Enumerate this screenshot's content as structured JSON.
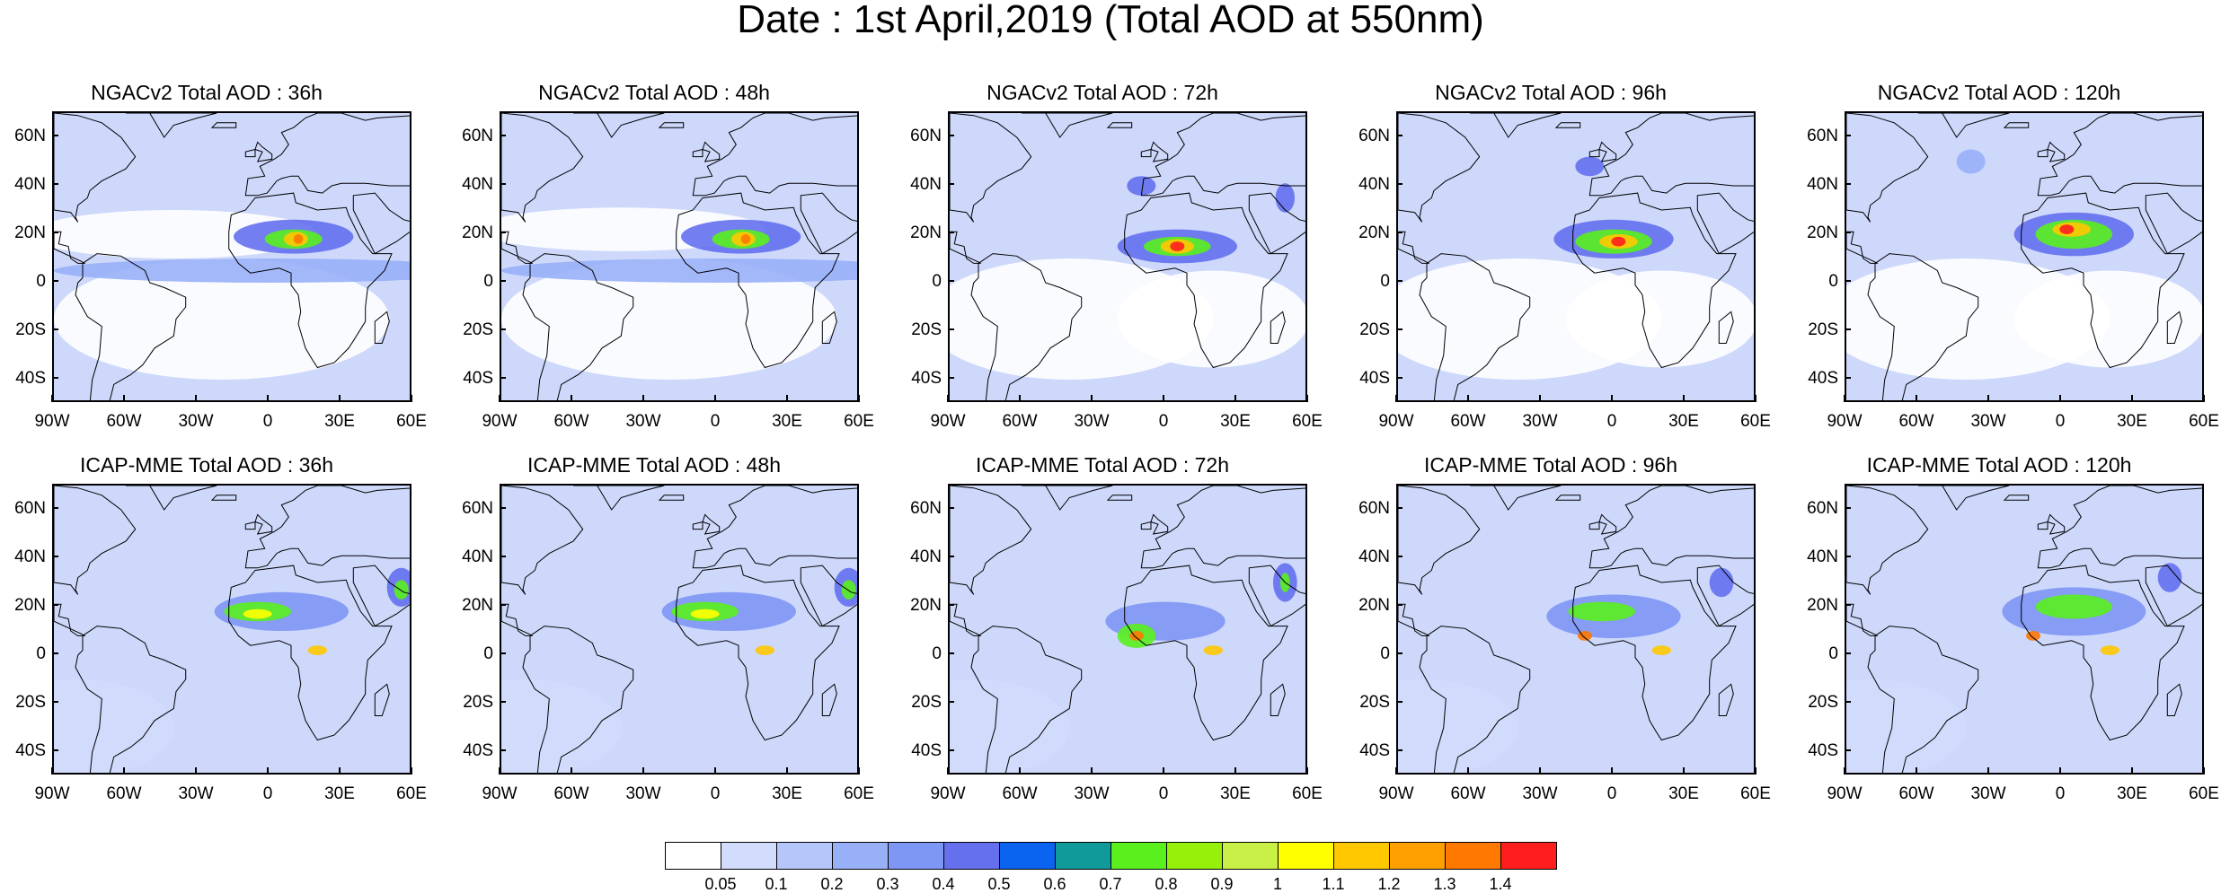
{
  "title": "Date : 1st April,2019 (Total AOD at 550nm)",
  "panels": [
    {
      "title": "NGACv2 Total AOD : 36h",
      "model": "NGACv2",
      "lead": "36h"
    },
    {
      "title": "NGACv2 Total AOD : 48h",
      "model": "NGACv2",
      "lead": "48h"
    },
    {
      "title": "NGACv2 Total AOD : 72h",
      "model": "NGACv2",
      "lead": "72h"
    },
    {
      "title": "NGACv2 Total AOD : 96h",
      "model": "NGACv2",
      "lead": "96h"
    },
    {
      "title": "NGACv2 Total AOD : 120h",
      "model": "NGACv2",
      "lead": "120h"
    },
    {
      "title": "ICAP-MME Total AOD : 36h",
      "model": "ICAP-MME",
      "lead": "36h"
    },
    {
      "title": "ICAP-MME Total AOD : 48h",
      "model": "ICAP-MME",
      "lead": "48h"
    },
    {
      "title": "ICAP-MME Total AOD : 72h",
      "model": "ICAP-MME",
      "lead": "72h"
    },
    {
      "title": "ICAP-MME Total AOD : 96h",
      "model": "ICAP-MME",
      "lead": "96h"
    },
    {
      "title": "ICAP-MME Total AOD : 120h",
      "model": "ICAP-MME",
      "lead": "120h"
    }
  ],
  "lat_labels": [
    "60N",
    "40N",
    "20N",
    "0",
    "20S",
    "40S"
  ],
  "lon_labels": [
    "90W",
    "60W",
    "30W",
    "0",
    "30E",
    "60E"
  ],
  "colorbar": {
    "labels": [
      "0.05",
      "0.1",
      "0.2",
      "0.3",
      "0.4",
      "0.5",
      "0.6",
      "0.7",
      "0.8",
      "0.9",
      "1",
      "1.1",
      "1.2",
      "1.3",
      "1.4"
    ],
    "colors": [
      "#ffffff",
      "#d2dcfc",
      "#b4c6fa",
      "#98b0f8",
      "#7e96f4",
      "#6470ee",
      "#0a64f0",
      "#109a9a",
      "#5af01e",
      "#96f00a",
      "#c8f046",
      "#ffff00",
      "#ffc800",
      "#ffa000",
      "#ff7800",
      "#ff1e1e"
    ]
  }
}
